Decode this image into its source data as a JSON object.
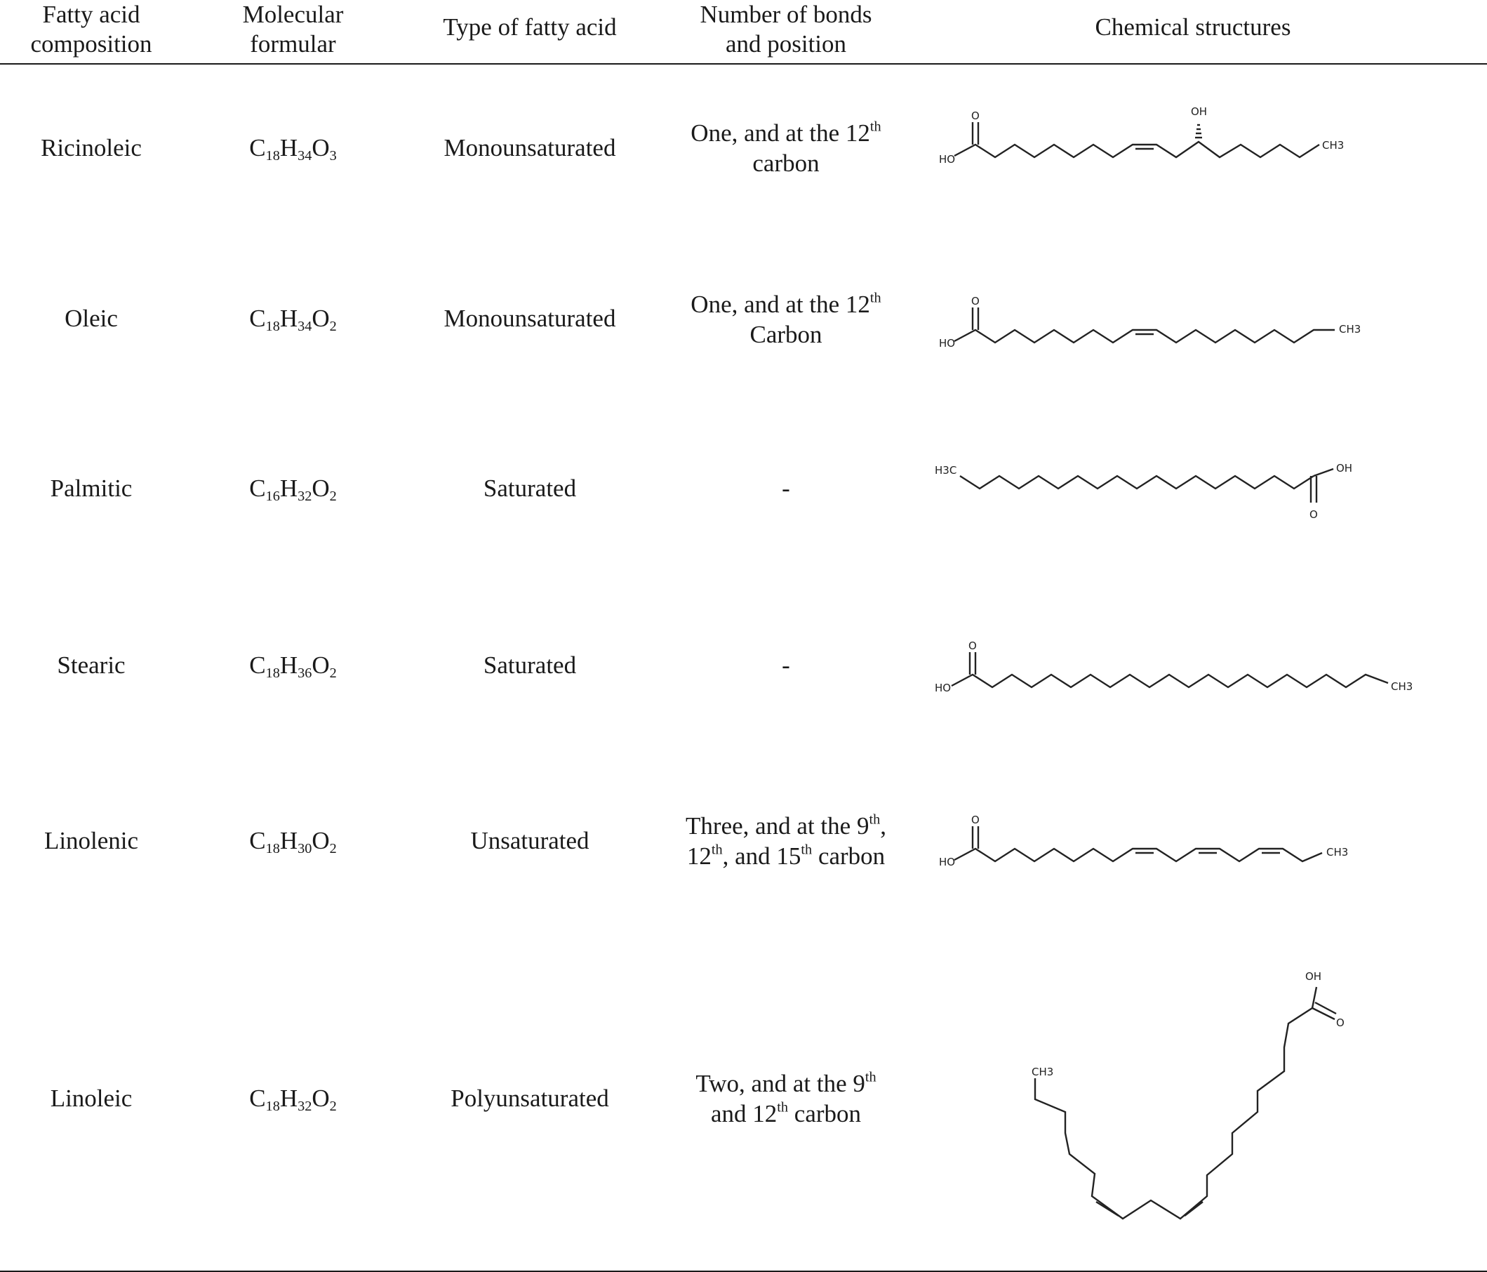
{
  "headers": {
    "col1": [
      "Fatty acid",
      "composition"
    ],
    "col2": [
      "Molecular",
      "formular"
    ],
    "col3": "Type of fatty acid",
    "col4": [
      "Number of bonds",
      "and position"
    ],
    "col5": "Chemical structures"
  },
  "rows": [
    {
      "name": "Ricinoleic",
      "formula": {
        "c": "C",
        "c_n": "18",
        "h": "H",
        "h_n": "34",
        "o": "O",
        "o_n": "3"
      },
      "type": "Monounsaturated",
      "bonds": {
        "line1": "One, and at the 12",
        "line1_sup": "th",
        "line2": "carbon"
      },
      "labels": {
        "o": "O",
        "ho": "HO",
        "oh": "OH",
        "ch3": "CH3"
      }
    },
    {
      "name": "Oleic",
      "formula": {
        "c": "C",
        "c_n": "18",
        "h": "H",
        "h_n": "34",
        "o": "O",
        "o_n": "2"
      },
      "type": "Monounsaturated",
      "bonds": {
        "line1": "One, and at the 12",
        "line1_sup": "th",
        "line2": "Carbon"
      },
      "labels": {
        "o": "O",
        "ho": "HO",
        "ch3": "CH3"
      }
    },
    {
      "name": "Palmitic",
      "formula": {
        "c": "C",
        "c_n": "16",
        "h": "H",
        "h_n": "32",
        "o": "O",
        "o_n": "2"
      },
      "type": "Saturated",
      "bonds": {
        "dash": "-"
      },
      "labels": {
        "h3c": "H3C",
        "oh": "OH",
        "o": "O"
      }
    },
    {
      "name": "Stearic",
      "formula": {
        "c": "C",
        "c_n": "18",
        "h": "H",
        "h_n": "36",
        "o": "O",
        "o_n": "2"
      },
      "type": "Saturated",
      "bonds": {
        "dash": "-"
      },
      "labels": {
        "o": "O",
        "ho": "HO",
        "ch3": "CH3"
      }
    },
    {
      "name": "Linolenic",
      "formula": {
        "c": "C",
        "c_n": "18",
        "h": "H",
        "h_n": "30",
        "o": "O",
        "o_n": "2"
      },
      "type": "Unsaturated",
      "bonds": {
        "a": "Three, and at the 9",
        "a_sup": "th",
        "b": ",",
        "c": "12",
        "c_sup": "th",
        "d": ", and 15",
        "d_sup": "th",
        "e": " carbon"
      },
      "labels": {
        "o": "O",
        "ho": "HO",
        "ch3": "CH3"
      }
    },
    {
      "name": "Linoleic",
      "formula": {
        "c": "C",
        "c_n": "18",
        "h": "H",
        "h_n": "32",
        "o": "O",
        "o_n": "2"
      },
      "type": "Polyunsaturated",
      "bonds": {
        "a": "Two, and at the 9",
        "a_sup": "th",
        "b": "and 12",
        "b_sup": "th",
        "c": " carbon"
      },
      "labels": {
        "oh": "OH",
        "o": "O",
        "ch3": "CH3"
      }
    }
  ]
}
